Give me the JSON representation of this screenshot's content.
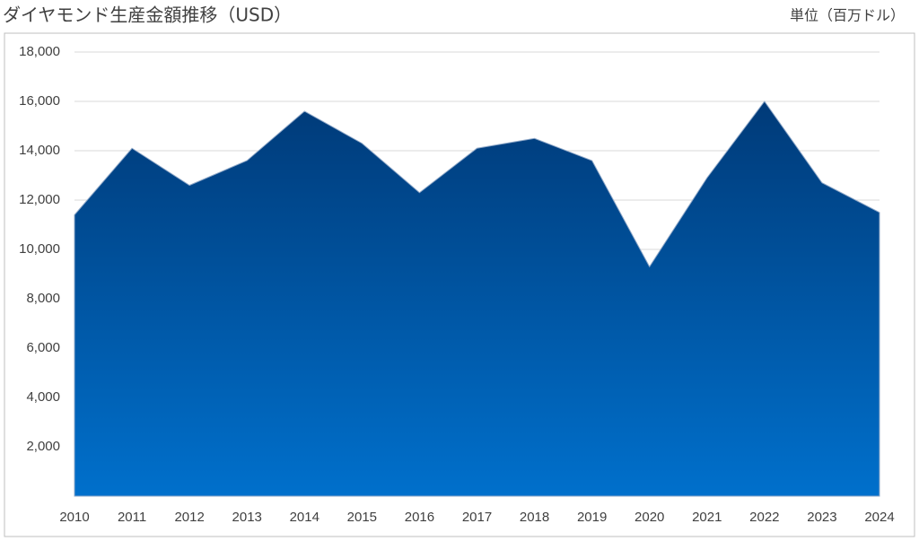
{
  "chart_data": {
    "type": "area",
    "title": "ダイヤモンド生産金額推移（USD）",
    "unit_label": "単位（百万ドル）",
    "categories": [
      "2010",
      "2011",
      "2012",
      "2013",
      "2014",
      "2015",
      "2016",
      "2017",
      "2018",
      "2019",
      "2020",
      "2021",
      "2022",
      "2023",
      "2024"
    ],
    "values": [
      11400,
      14100,
      12600,
      13600,
      15600,
      14300,
      12300,
      14100,
      14500,
      13600,
      9300,
      12900,
      16000,
      12700,
      11500
    ],
    "color": "#0070cc",
    "ylim": [
      0,
      18000
    ],
    "yticks": [
      {
        "value": 2000,
        "label": "2,000"
      },
      {
        "value": 4000,
        "label": "4,000"
      },
      {
        "value": 6000,
        "label": "6,000"
      },
      {
        "value": 8000,
        "label": "8,000"
      },
      {
        "value": 10000,
        "label": "10,000"
      },
      {
        "value": 12000,
        "label": "12,000"
      },
      {
        "value": 14000,
        "label": "14,000"
      },
      {
        "value": 16000,
        "label": "16,000"
      },
      {
        "value": 18000,
        "label": "18,000"
      }
    ],
    "grid": true
  }
}
